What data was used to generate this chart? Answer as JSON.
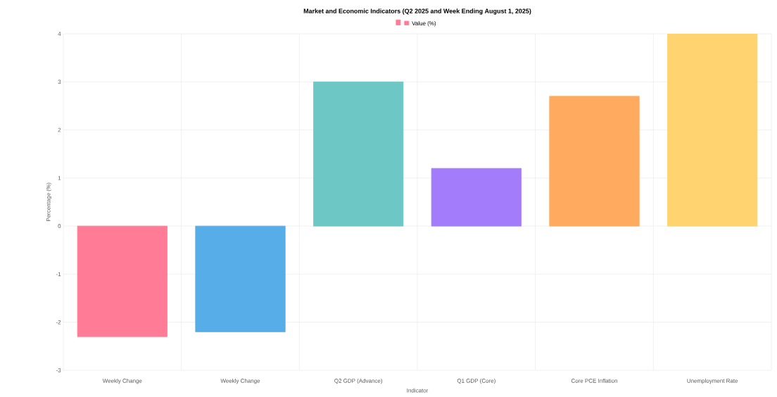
{
  "chart_data": {
    "type": "bar",
    "title": "Market and Economic Indicators (Q2 2025 and Week Ending August 1, 2025)",
    "categories": [
      "Weekly Change",
      "Weekly Change",
      "Q2 GDP (Advance)",
      "Q1 GDP (Core)",
      "Core PCE Inflation",
      "Unemployment Rate"
    ],
    "series": [
      {
        "name": "Value (%)",
        "values": [
          -2.3,
          -2.2,
          3.0,
          1.2,
          2.7,
          4.0
        ],
        "colors": [
          "#ff7b96",
          "#57ade8",
          "#6cc7c5",
          "#a37cfc",
          "#ffaa5e",
          "#ffd36f"
        ]
      }
    ],
    "xlabel": "Indicator",
    "ylabel": "Percentage (%)",
    "ylim": [
      -3,
      4
    ],
    "yticks": [
      -3,
      -2,
      -1,
      0,
      1,
      2,
      3,
      4
    ],
    "grid": true,
    "legend": "top"
  }
}
